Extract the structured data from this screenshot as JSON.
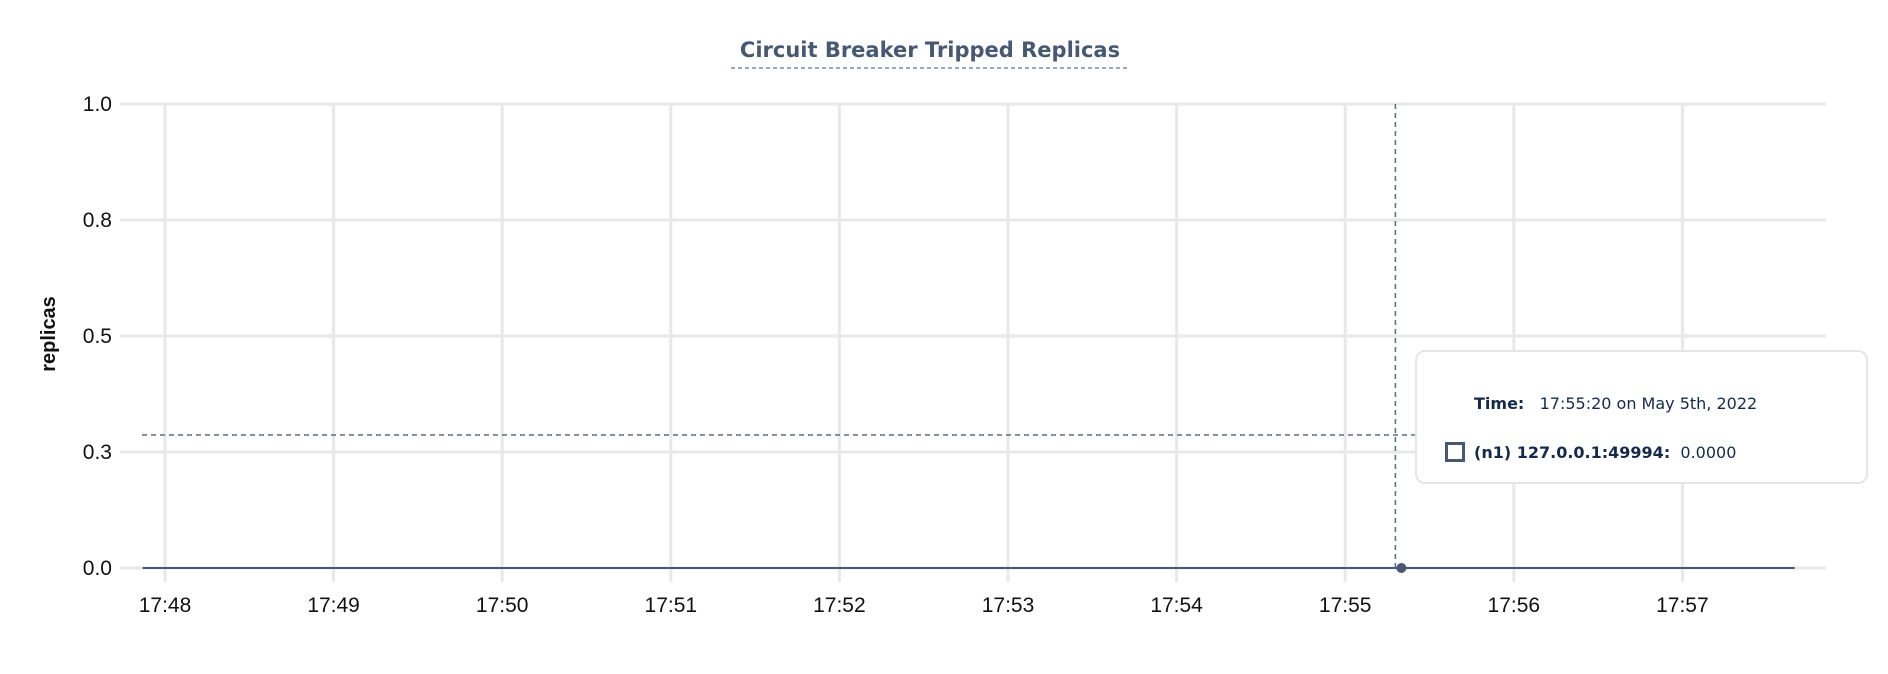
{
  "chart_data": {
    "type": "line",
    "title": "Circuit Breaker Tripped Replicas",
    "xlabel": "",
    "ylabel": "replicas",
    "x_ticks": [
      "17:48",
      "17:49",
      "17:50",
      "17:51",
      "17:52",
      "17:53",
      "17:54",
      "17:55",
      "17:56",
      "17:57"
    ],
    "y_ticks": [
      {
        "value": 1.0,
        "label": "1.0"
      },
      {
        "value": 0.75,
        "label": "0.8"
      },
      {
        "value": 0.5,
        "label": "0.5"
      },
      {
        "value": 0.25,
        "label": "0.3"
      },
      {
        "value": 0,
        "label": "0.0"
      }
    ],
    "xlim": [
      "17:47:52",
      "17:57:40"
    ],
    "ylim": [
      0,
      1
    ],
    "grid": true,
    "series": [
      {
        "name": "(n1) 127.0.0.1:49994",
        "color": "#475872",
        "x": [
          "17:47:52",
          "17:55:20",
          "17:57:40"
        ],
        "y": [
          0,
          0,
          0
        ]
      }
    ]
  },
  "tooltip": {
    "time_label": "Time:",
    "time_value": "17:55:20 on May 5th, 2022",
    "series_label": "(n1) 127.0.0.1:49994:",
    "series_value": "0.0000",
    "hover_time": "17:55:20"
  }
}
